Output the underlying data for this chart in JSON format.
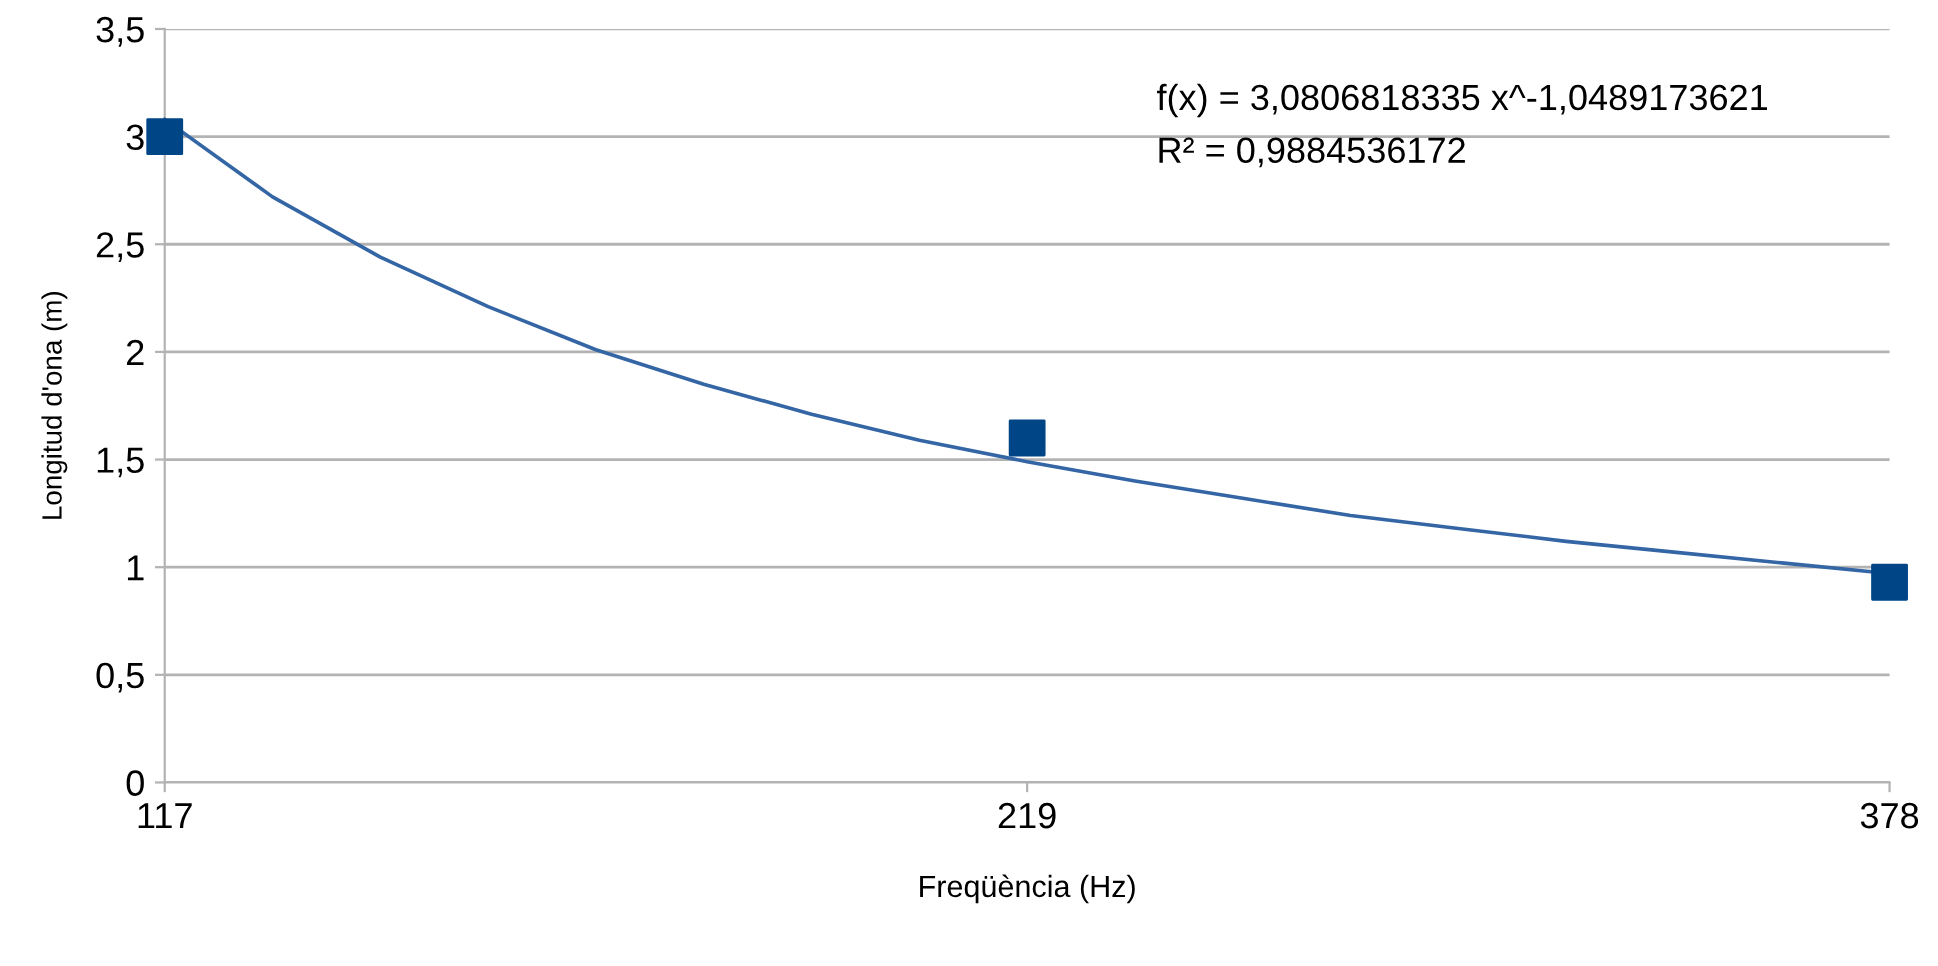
{
  "chart_data": {
    "type": "scatter",
    "xlabel": "Freqüència (Hz)",
    "ylabel": "Longitud d'ona (m)",
    "categories": [
      "117",
      null,
      null,
      null,
      null,
      null,
      null,
      null,
      "219",
      null,
      null,
      null,
      null,
      null,
      null,
      null,
      "378"
    ],
    "ylim": [
      0,
      3.5
    ],
    "yticks": [
      0,
      {
        "value": 0.5,
        "label": "0,5"
      },
      1,
      {
        "value": 1.5,
        "label": "1,5"
      },
      2,
      {
        "value": 2.5,
        "label": "2,5"
      },
      3,
      {
        "value": 3.5,
        "label": "3,5"
      }
    ],
    "grid": "y",
    "series": [
      {
        "type": "line",
        "color": "#3465a4",
        "line_style": "solid",
        "values": [
          3.08,
          2.72,
          2.44,
          2.21,
          2.01,
          1.85,
          1.71,
          1.59,
          1.49,
          1.4,
          1.32,
          1.24,
          1.18,
          1.12,
          1.07,
          1.02,
          0.97
        ]
      },
      {
        "color": "#004586",
        "marker": "square",
        "values": [
          3.0,
          null,
          null,
          null,
          null,
          null,
          null,
          null,
          1.6,
          null,
          null,
          null,
          null,
          null,
          null,
          null,
          0.93
        ]
      }
    ],
    "annotations": [
      "f(x) = 3,0806818335 x^-1,0489173621",
      "R² = 0,9884536172"
    ]
  }
}
